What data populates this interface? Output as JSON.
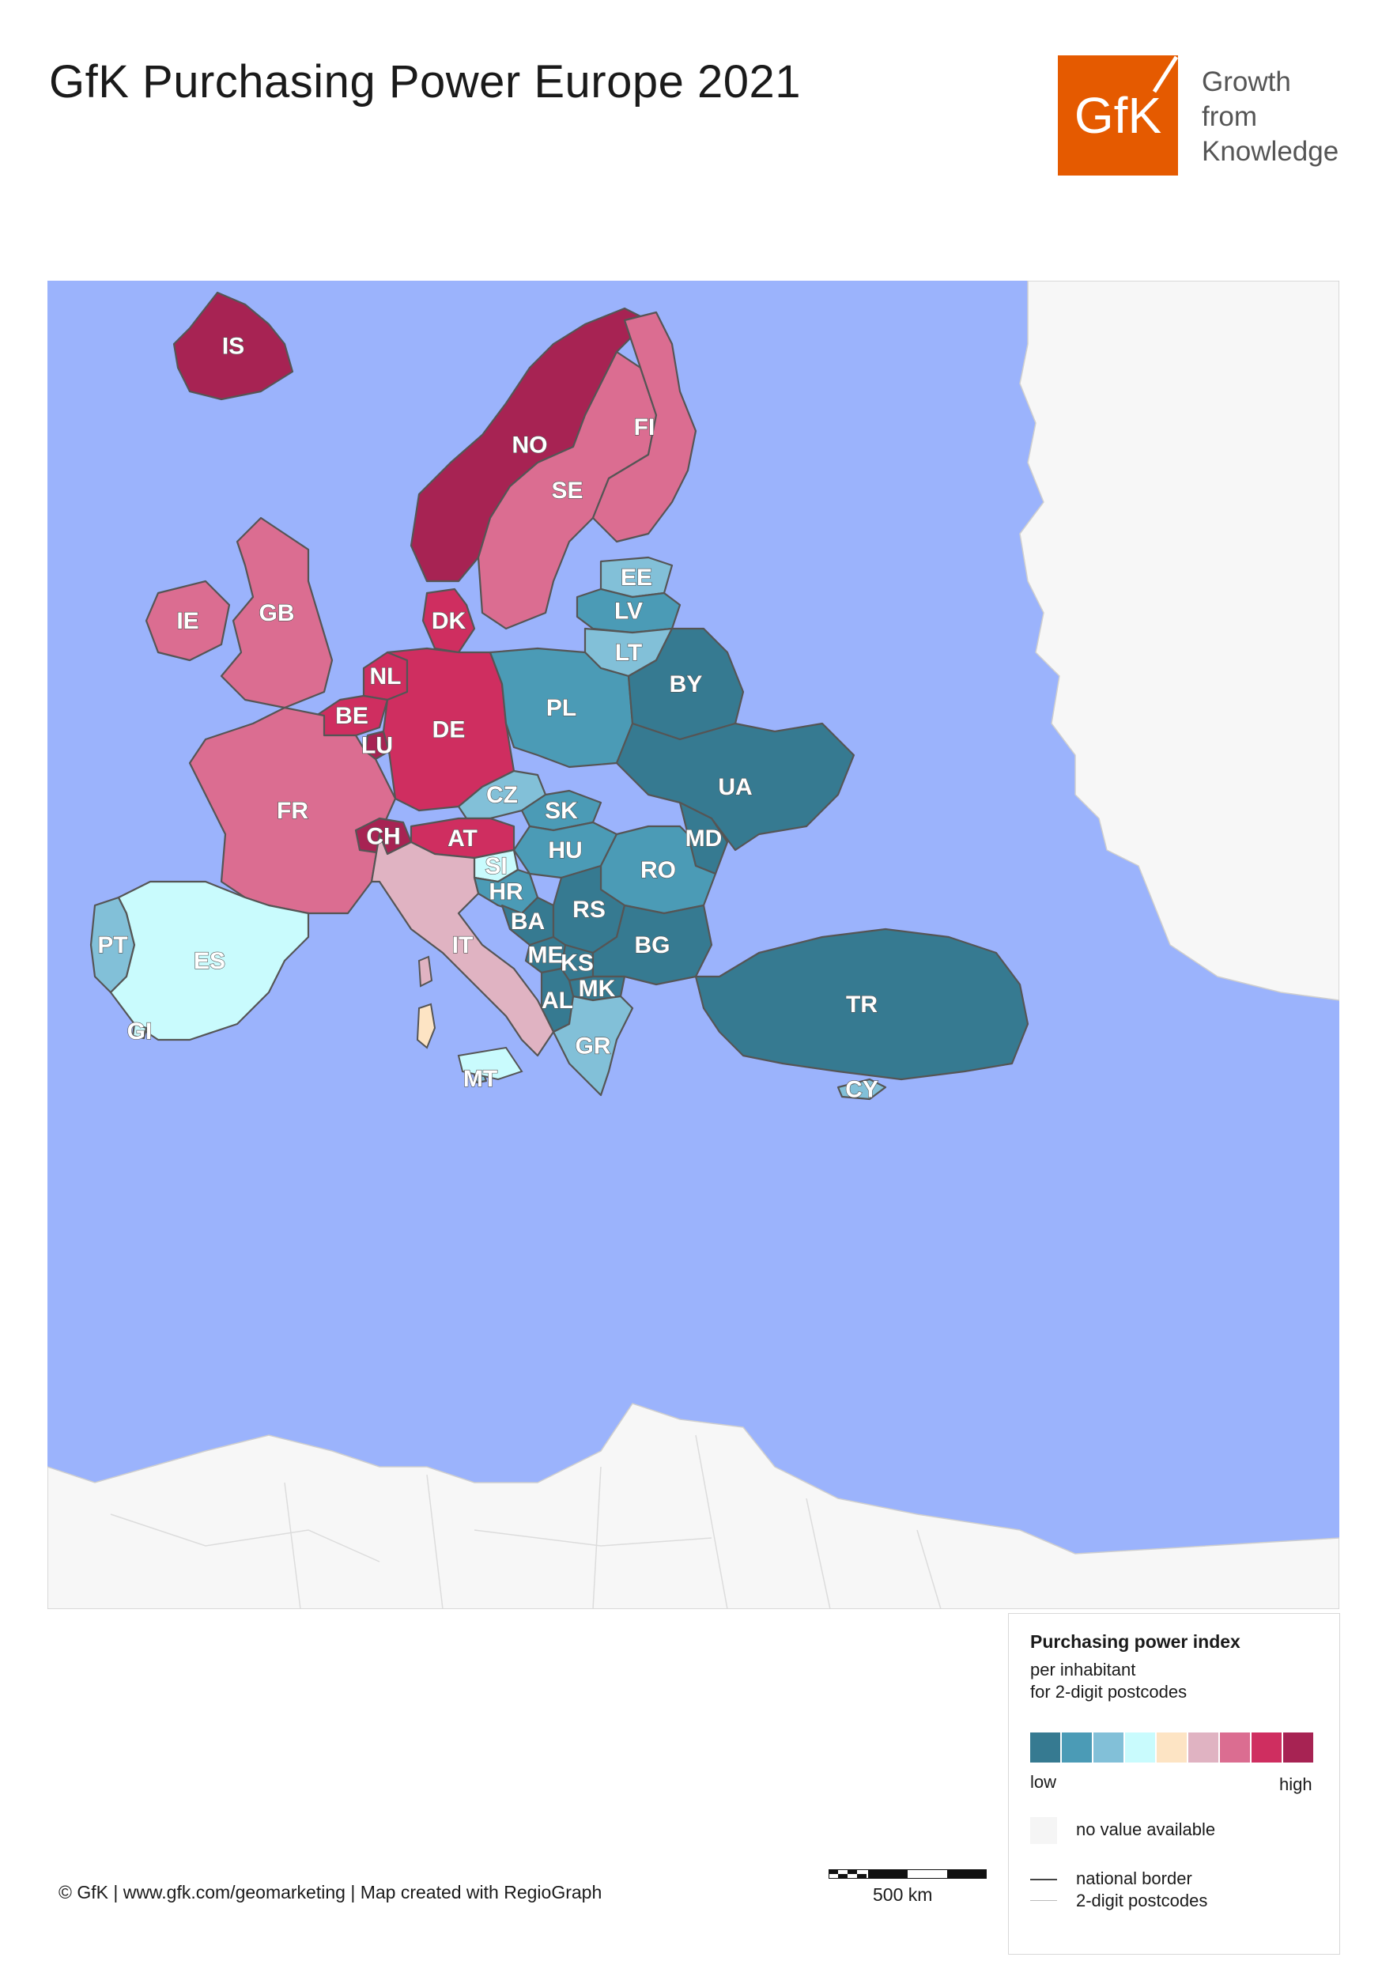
{
  "title": "GfK Purchasing Power Europe 2021",
  "logo": {
    "text": "GfK",
    "color": "#e55a00",
    "name": "gfk-logo"
  },
  "tagline": [
    "Growth",
    "from",
    "Knowledge"
  ],
  "colors": {
    "sea": "#9bb3fc",
    "non_data_land": "#f7f7f7",
    "border_national": "#555555",
    "border_postcode": "#9a9a9a",
    "scale": [
      "#367a91",
      "#4b9bb6",
      "#82c0d8",
      "#c9fbfd",
      "#fde4c4",
      "#e0b3c2",
      "#db6d91",
      "#cf2e60",
      "#a72353"
    ]
  },
  "countries": [
    {
      "code": "IS",
      "class": 8
    },
    {
      "code": "NO",
      "class": 8
    },
    {
      "code": "SE",
      "class": 6
    },
    {
      "code": "FI",
      "class": 6
    },
    {
      "code": "EE",
      "class": 2
    },
    {
      "code": "LV",
      "class": 1
    },
    {
      "code": "LT",
      "class": 2
    },
    {
      "code": "DK",
      "class": 7
    },
    {
      "code": "IE",
      "class": 6
    },
    {
      "code": "GB",
      "class": 6
    },
    {
      "code": "NL",
      "class": 7
    },
    {
      "code": "BE",
      "class": 7
    },
    {
      "code": "LU",
      "class": 8
    },
    {
      "code": "DE",
      "class": 7
    },
    {
      "code": "PL",
      "class": 1
    },
    {
      "code": "BY",
      "class": 0
    },
    {
      "code": "UA",
      "class": 0
    },
    {
      "code": "CZ",
      "class": 2
    },
    {
      "code": "SK",
      "class": 1
    },
    {
      "code": "FR",
      "class": 6
    },
    {
      "code": "CH",
      "class": 8
    },
    {
      "code": "AT",
      "class": 7
    },
    {
      "code": "HU",
      "class": 1
    },
    {
      "code": "MD",
      "class": 0
    },
    {
      "code": "SI",
      "class": 3
    },
    {
      "code": "HR",
      "class": 1
    },
    {
      "code": "RO",
      "class": 1
    },
    {
      "code": "BA",
      "class": 0
    },
    {
      "code": "RS",
      "class": 0
    },
    {
      "code": "PT",
      "class": 2
    },
    {
      "code": "ES",
      "class": 3
    },
    {
      "code": "IT",
      "class": 5
    },
    {
      "code": "ME",
      "class": 0
    },
    {
      "code": "KS",
      "class": 0
    },
    {
      "code": "BG",
      "class": 0
    },
    {
      "code": "MK",
      "class": 0
    },
    {
      "code": "AL",
      "class": 0
    },
    {
      "code": "GI",
      "class": 3
    },
    {
      "code": "GR",
      "class": 2
    },
    {
      "code": "TR",
      "class": 0
    },
    {
      "code": "MT",
      "class": 2
    },
    {
      "code": "CY",
      "class": 2
    }
  ],
  "legend": {
    "title": "Purchasing power index",
    "subtitle_1": "per inhabitant",
    "subtitle_2": "for 2-digit postcodes",
    "low": "low",
    "high": "high",
    "no_value": "no value available",
    "national_border": "national border",
    "postcodes": "2-digit postcodes"
  },
  "scale_bar": {
    "label": "500 km"
  },
  "credits": "© GfK | www.gfk.com/geomarketing | Map created with RegioGraph"
}
